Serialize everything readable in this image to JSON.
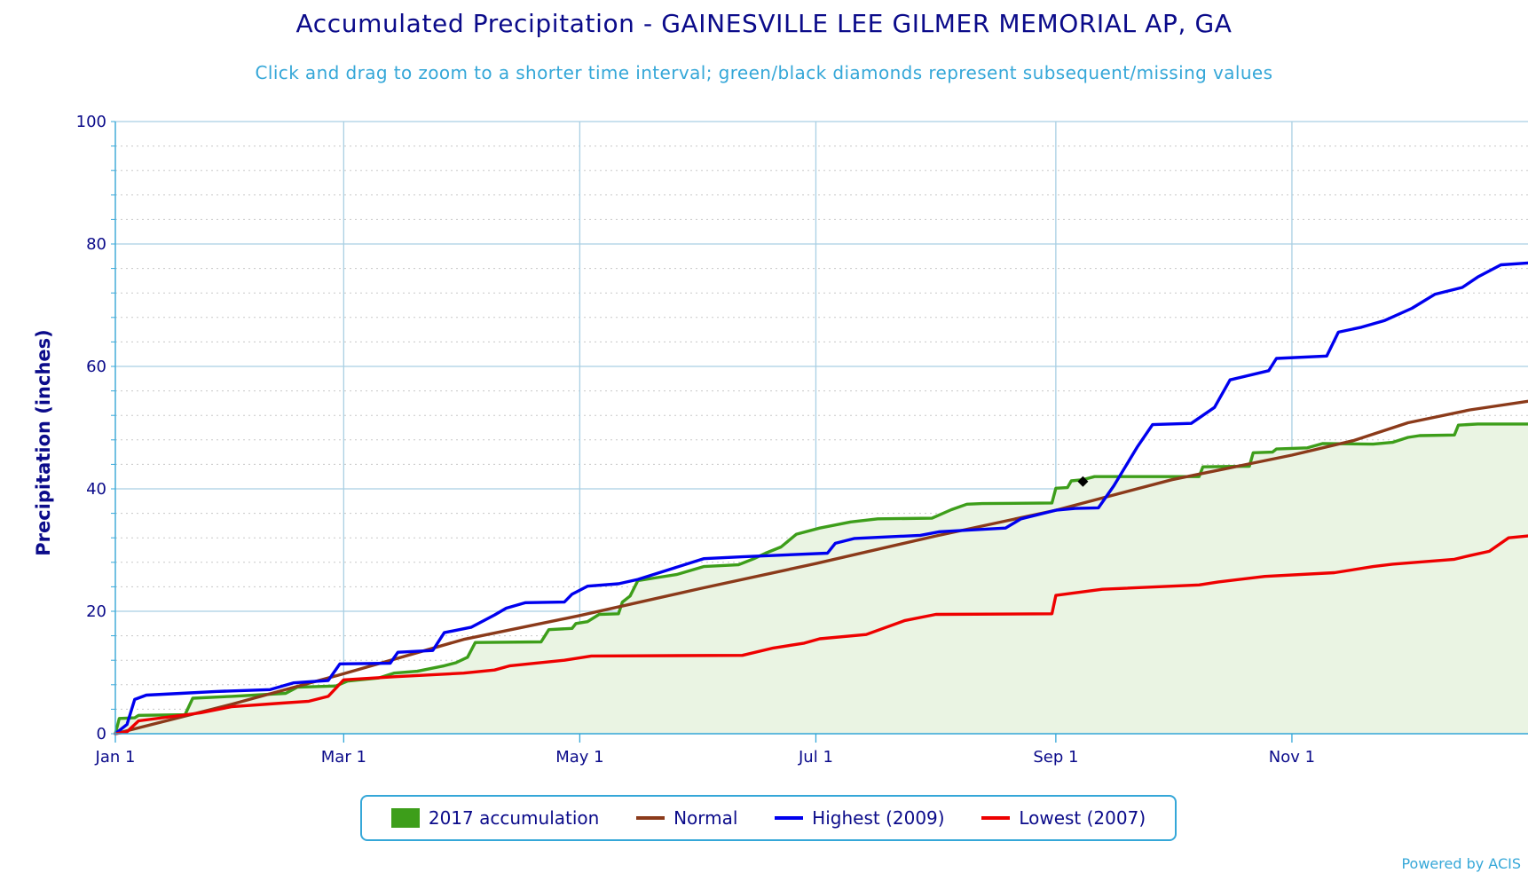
{
  "title": "Accumulated Precipitation - GAINESVILLE LEE GILMER MEMORIAL AP, GA",
  "subtitle": "Click and drag to zoom to a shorter time interval; green/black diamonds represent subsequent/missing values",
  "credit": "Powered by ACIS",
  "colors": {
    "acc2017": "#3d9e1a",
    "acc2017_fill": "#eaf4e3",
    "normal": "#8b3a1a",
    "highest": "#0000ee",
    "lowest": "#ee0000",
    "grid_major": "#a9cfe3",
    "grid_minor": "#c8c8c8",
    "axis": "#35a7d8"
  },
  "chart_data": {
    "type": "line",
    "title": "Accumulated Precipitation - GAINESVILLE LEE GILMER MEMORIAL AP, GA",
    "xlabel": "",
    "ylabel": "Precipitation (inches)",
    "xlim": [
      0,
      365
    ],
    "ylim": [
      0,
      100
    ],
    "x_ticks": [
      {
        "label": "Jan 1",
        "day": 0
      },
      {
        "label": "Mar 1",
        "day": 59
      },
      {
        "label": "May 1",
        "day": 120
      },
      {
        "label": "Jul 1",
        "day": 181
      },
      {
        "label": "Sep 1",
        "day": 243
      },
      {
        "label": "Nov 1",
        "day": 304
      }
    ],
    "y_ticks": [
      0,
      20,
      40,
      60,
      80,
      100
    ],
    "grid": true,
    "legend_position": "bottom-center",
    "missing_marker": {
      "day": 250,
      "value": 41.2
    },
    "series": [
      {
        "name": "2017 accumulation",
        "style": "area",
        "color_key": "acc2017",
        "points": [
          [
            0,
            0
          ],
          [
            1,
            2.5
          ],
          [
            5,
            2.6
          ],
          [
            6,
            3.0
          ],
          [
            18,
            3.1
          ],
          [
            20,
            5.8
          ],
          [
            30,
            6.1
          ],
          [
            44,
            6.6
          ],
          [
            47,
            7.6
          ],
          [
            57,
            7.8
          ],
          [
            60,
            8.6
          ],
          [
            68,
            9.1
          ],
          [
            72,
            9.9
          ],
          [
            78,
            10.2
          ],
          [
            81,
            10.6
          ],
          [
            85,
            11.1
          ],
          [
            88,
            11.6
          ],
          [
            91,
            12.5
          ],
          [
            93,
            14.9
          ],
          [
            110,
            15.0
          ],
          [
            112,
            17.0
          ],
          [
            118,
            17.2
          ],
          [
            119,
            18.0
          ],
          [
            122,
            18.3
          ],
          [
            125,
            19.5
          ],
          [
            130,
            19.6
          ],
          [
            131,
            21.5
          ],
          [
            133,
            22.5
          ],
          [
            135,
            25.0
          ],
          [
            140,
            25.5
          ],
          [
            145,
            26.0
          ],
          [
            152,
            27.3
          ],
          [
            161,
            27.6
          ],
          [
            165,
            28.6
          ],
          [
            168,
            29.5
          ],
          [
            172,
            30.5
          ],
          [
            176,
            32.6
          ],
          [
            182,
            33.6
          ],
          [
            190,
            34.6
          ],
          [
            197,
            35.1
          ],
          [
            211,
            35.2
          ],
          [
            216,
            36.6
          ],
          [
            220,
            37.5
          ],
          [
            224,
            37.6
          ],
          [
            242,
            37.7
          ],
          [
            243,
            40.1
          ],
          [
            246,
            40.2
          ],
          [
            247,
            41.3
          ],
          [
            250,
            41.5
          ],
          [
            253,
            42.0
          ],
          [
            280,
            42.0
          ],
          [
            281,
            43.6
          ],
          [
            293,
            43.7
          ],
          [
            294,
            45.9
          ],
          [
            299,
            46.0
          ],
          [
            300,
            46.5
          ],
          [
            308,
            46.7
          ],
          [
            312,
            47.4
          ],
          [
            325,
            47.3
          ],
          [
            330,
            47.6
          ],
          [
            334,
            48.4
          ],
          [
            337,
            48.7
          ],
          [
            346,
            48.8
          ],
          [
            347,
            50.4
          ],
          [
            352,
            50.6
          ],
          [
            365,
            50.6
          ]
        ]
      },
      {
        "name": "Normal",
        "style": "line",
        "color_key": "normal",
        "points": [
          [
            0,
            0
          ],
          [
            30,
            4.8
          ],
          [
            59,
            9.8
          ],
          [
            90,
            15.4
          ],
          [
            120,
            19.3
          ],
          [
            151,
            23.7
          ],
          [
            181,
            27.8
          ],
          [
            212,
            32.3
          ],
          [
            243,
            36.5
          ],
          [
            273,
            41.5
          ],
          [
            304,
            45.5
          ],
          [
            320,
            47.9
          ],
          [
            334,
            50.8
          ],
          [
            350,
            52.9
          ],
          [
            365,
            54.3
          ]
        ]
      },
      {
        "name": "Highest (2009)",
        "style": "line",
        "color_key": "highest",
        "points": [
          [
            0,
            0
          ],
          [
            3,
            1.5
          ],
          [
            5,
            5.6
          ],
          [
            8,
            6.3
          ],
          [
            17,
            6.6
          ],
          [
            26,
            6.9
          ],
          [
            40,
            7.2
          ],
          [
            46,
            8.3
          ],
          [
            55,
            8.7
          ],
          [
            58,
            11.4
          ],
          [
            71,
            11.5
          ],
          [
            73,
            13.3
          ],
          [
            82,
            13.6
          ],
          [
            85,
            16.5
          ],
          [
            92,
            17.4
          ],
          [
            98,
            19.4
          ],
          [
            101,
            20.5
          ],
          [
            106,
            21.4
          ],
          [
            116,
            21.5
          ],
          [
            118,
            22.8
          ],
          [
            122,
            24.1
          ],
          [
            130,
            24.5
          ],
          [
            135,
            25.2
          ],
          [
            142,
            26.6
          ],
          [
            152,
            28.6
          ],
          [
            162,
            28.9
          ],
          [
            184,
            29.5
          ],
          [
            186,
            31.1
          ],
          [
            191,
            31.9
          ],
          [
            208,
            32.4
          ],
          [
            213,
            33.0
          ],
          [
            230,
            33.6
          ],
          [
            234,
            35.1
          ],
          [
            243,
            36.5
          ],
          [
            248,
            36.8
          ],
          [
            254,
            36.9
          ],
          [
            258,
            40.5
          ],
          [
            264,
            46.8
          ],
          [
            268,
            50.5
          ],
          [
            278,
            50.7
          ],
          [
            284,
            53.3
          ],
          [
            288,
            57.8
          ],
          [
            298,
            59.3
          ],
          [
            300,
            61.3
          ],
          [
            313,
            61.7
          ],
          [
            316,
            65.6
          ],
          [
            322,
            66.4
          ],
          [
            328,
            67.5
          ],
          [
            335,
            69.5
          ],
          [
            341,
            71.8
          ],
          [
            348,
            72.9
          ],
          [
            352,
            74.6
          ],
          [
            358,
            76.6
          ],
          [
            365,
            76.9
          ]
        ]
      },
      {
        "name": "Lowest (2007)",
        "style": "line",
        "color_key": "lowest",
        "points": [
          [
            0,
            0
          ],
          [
            3,
            0.3
          ],
          [
            6,
            2.1
          ],
          [
            22,
            3.4
          ],
          [
            30,
            4.4
          ],
          [
            43,
            5.0
          ],
          [
            50,
            5.3
          ],
          [
            55,
            6.1
          ],
          [
            59,
            8.8
          ],
          [
            72,
            9.3
          ],
          [
            90,
            9.9
          ],
          [
            98,
            10.4
          ],
          [
            102,
            11.1
          ],
          [
            116,
            12.0
          ],
          [
            123,
            12.7
          ],
          [
            162,
            12.8
          ],
          [
            170,
            14.0
          ],
          [
            178,
            14.8
          ],
          [
            182,
            15.5
          ],
          [
            194,
            16.2
          ],
          [
            204,
            18.5
          ],
          [
            212,
            19.5
          ],
          [
            242,
            19.6
          ],
          [
            243,
            22.6
          ],
          [
            255,
            23.6
          ],
          [
            280,
            24.3
          ],
          [
            285,
            24.8
          ],
          [
            297,
            25.7
          ],
          [
            315,
            26.3
          ],
          [
            325,
            27.3
          ],
          [
            330,
            27.7
          ],
          [
            346,
            28.5
          ],
          [
            350,
            29.1
          ],
          [
            355,
            29.8
          ],
          [
            360,
            32.0
          ],
          [
            365,
            32.3
          ]
        ]
      }
    ]
  },
  "legend": {
    "items": [
      {
        "label": "2017 accumulation"
      },
      {
        "label": "Normal"
      },
      {
        "label": "Highest (2009)"
      },
      {
        "label": "Lowest (2007)"
      }
    ]
  }
}
